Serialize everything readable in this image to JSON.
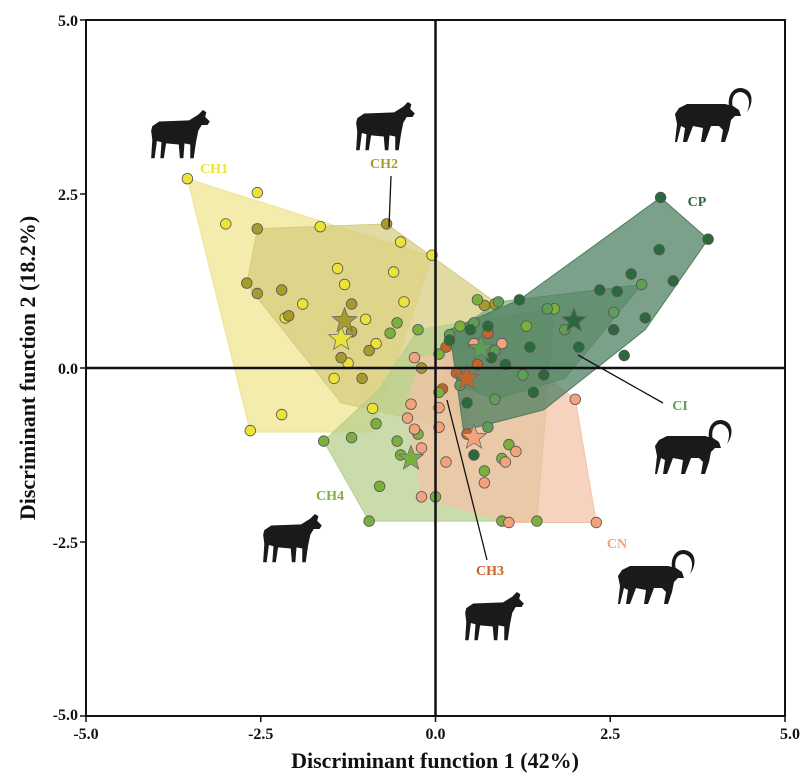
{
  "chart_data": {
    "type": "scatter",
    "title": "",
    "xlabel": "Discriminant function 1 (42%)",
    "ylabel": "Discriminant function 2 (18.2%)",
    "xlim": [
      -5,
      5
    ],
    "ylim": [
      -5,
      5
    ],
    "x_ticks": [
      "-5.0",
      "-2.5",
      "0.0",
      "2.5",
      "5.0"
    ],
    "y_ticks": [
      "-5.0",
      "-2.5",
      "0.0",
      "2.5",
      "5.0"
    ],
    "grid": false,
    "reference_lines": [
      0,
      0
    ],
    "groups": [
      {
        "name": "CH1",
        "color": "#ede238",
        "hull_color": "#eee48e",
        "centroid": [
          -1.35,
          0.42
        ],
        "hull": [
          [
            -3.55,
            2.72
          ],
          [
            -0.05,
            1.6
          ],
          [
            -0.9,
            -0.92
          ],
          [
            -2.65,
            -0.92
          ]
        ],
        "points": [
          [
            -3.55,
            2.72
          ],
          [
            -3.0,
            2.07
          ],
          [
            -2.55,
            2.52
          ],
          [
            -1.65,
            2.03
          ],
          [
            -0.5,
            1.81
          ],
          [
            -1.4,
            1.43
          ],
          [
            -1.3,
            1.2
          ],
          [
            -0.6,
            1.38
          ],
          [
            -1.9,
            0.92
          ],
          [
            -0.45,
            0.95
          ],
          [
            -2.15,
            0.72
          ],
          [
            -1.0,
            0.7
          ],
          [
            -1.25,
            0.07
          ],
          [
            -1.45,
            -0.15
          ],
          [
            -0.85,
            0.35
          ],
          [
            -0.05,
            1.62
          ],
          [
            -2.65,
            -0.9
          ],
          [
            -2.2,
            -0.67
          ],
          [
            -0.9,
            -0.58
          ]
        ]
      },
      {
        "name": "CH2",
        "color": "#a89b2b",
        "hull_color": "#d6cc7e",
        "centroid": [
          -1.3,
          0.68
        ],
        "hull": [
          [
            -2.55,
            2.0
          ],
          [
            -0.7,
            2.07
          ],
          [
            0.85,
            0.95
          ],
          [
            0.45,
            -0.9
          ],
          [
            -1.35,
            -0.5
          ],
          [
            -2.7,
            1.2
          ]
        ],
        "points": [
          [
            -2.55,
            2.0
          ],
          [
            -0.7,
            2.07
          ],
          [
            -2.7,
            1.22
          ],
          [
            -2.55,
            1.07
          ],
          [
            -2.2,
            1.12
          ],
          [
            -2.1,
            0.75
          ],
          [
            -1.2,
            0.92
          ],
          [
            -1.2,
            0.52
          ],
          [
            -0.95,
            0.25
          ],
          [
            -1.35,
            0.15
          ],
          [
            -1.05,
            -0.15
          ],
          [
            -0.2,
            0.0
          ],
          [
            0.85,
            0.92
          ],
          [
            0.7,
            0.9
          ]
        ]
      },
      {
        "name": "CH3",
        "color": "#c8642a",
        "hull_color": "#d99a6e",
        "centroid": [
          0.45,
          -0.15
        ],
        "hull": [
          [
            0.75,
            0.5
          ],
          [
            0.6,
            0.05
          ],
          [
            0.45,
            -0.95
          ],
          [
            0.1,
            -0.35
          ],
          [
            0.15,
            0.3
          ]
        ],
        "points": [
          [
            0.75,
            0.5
          ],
          [
            0.6,
            0.05
          ],
          [
            0.3,
            -0.07
          ],
          [
            0.1,
            -0.3
          ],
          [
            0.45,
            -0.95
          ],
          [
            0.15,
            0.3
          ]
        ]
      },
      {
        "name": "CH4",
        "color": "#7cb03c",
        "hull_color": "#b7ce8c",
        "centroid": [
          -0.35,
          -1.3
        ],
        "hull": [
          [
            -0.25,
            0.55
          ],
          [
            1.7,
            0.85
          ],
          [
            1.45,
            -2.2
          ],
          [
            -0.95,
            -2.2
          ],
          [
            -1.6,
            -1.05
          ],
          [
            -0.8,
            -0.3
          ]
        ],
        "points": [
          [
            1.7,
            0.85
          ],
          [
            1.3,
            0.6
          ],
          [
            0.6,
            0.98
          ],
          [
            0.35,
            0.6
          ],
          [
            -0.55,
            0.65
          ],
          [
            -0.65,
            0.5
          ],
          [
            -0.25,
            0.55
          ],
          [
            0.05,
            0.2
          ],
          [
            -1.6,
            -1.05
          ],
          [
            -1.2,
            -1.0
          ],
          [
            -0.85,
            -0.8
          ],
          [
            -0.55,
            -1.05
          ],
          [
            -0.25,
            -0.95
          ],
          [
            -0.5,
            -1.25
          ],
          [
            -0.95,
            -2.2
          ],
          [
            0.7,
            -1.48
          ],
          [
            0.95,
            -1.3
          ],
          [
            1.05,
            -1.1
          ],
          [
            0.95,
            -2.2
          ],
          [
            1.45,
            -2.2
          ],
          [
            0.0,
            -1.85
          ],
          [
            -0.8,
            -1.7
          ],
          [
            0.05,
            -0.35
          ]
        ]
      },
      {
        "name": "CN",
        "color": "#f2a37c",
        "hull_color": "#f4c2a6",
        "centroid": [
          0.55,
          -1.0
        ],
        "hull": [
          [
            0.95,
            0.35
          ],
          [
            2.0,
            -0.45
          ],
          [
            2.3,
            -2.22
          ],
          [
            1.05,
            -2.22
          ],
          [
            -0.2,
            -1.85
          ],
          [
            -0.4,
            -0.5
          ],
          [
            -0.2,
            0.15
          ]
        ],
        "points": [
          [
            0.95,
            0.35
          ],
          [
            1.0,
            -1.35
          ],
          [
            2.0,
            -0.45
          ],
          [
            2.3,
            -2.22
          ],
          [
            1.05,
            -2.22
          ],
          [
            1.15,
            -1.2
          ],
          [
            0.7,
            -1.65
          ],
          [
            0.15,
            -1.35
          ],
          [
            -0.2,
            -1.85
          ],
          [
            -0.2,
            -1.15
          ],
          [
            -0.3,
            -0.88
          ],
          [
            -0.4,
            -0.72
          ],
          [
            -0.35,
            -0.52
          ],
          [
            -0.3,
            0.15
          ],
          [
            0.05,
            -0.57
          ],
          [
            0.05,
            -0.85
          ],
          [
            0.55,
            0.35
          ]
        ]
      },
      {
        "name": "CI",
        "color": "#5e9e55",
        "hull_color": "#86ad80",
        "centroid": [
          0.65,
          0.28
        ],
        "hull": [
          [
            0.9,
            0.95
          ],
          [
            2.95,
            1.2
          ],
          [
            1.85,
            -0.15
          ],
          [
            0.85,
            -0.45
          ],
          [
            0.35,
            -0.25
          ],
          [
            0.2,
            0.48
          ]
        ],
        "points": [
          [
            0.9,
            0.95
          ],
          [
            1.6,
            0.85
          ],
          [
            2.95,
            1.2
          ],
          [
            2.55,
            0.8
          ],
          [
            1.85,
            0.55
          ],
          [
            0.85,
            0.25
          ],
          [
            1.25,
            -0.1
          ],
          [
            0.85,
            -0.45
          ],
          [
            0.35,
            -0.25
          ],
          [
            0.2,
            0.48
          ],
          [
            0.75,
            -0.85
          ],
          [
            0.55,
            0.65
          ]
        ]
      },
      {
        "name": "CP",
        "color": "#2a6a3a",
        "hull_color": "#4a7d5e",
        "centroid": [
          1.98,
          0.68
        ],
        "hull": [
          [
            3.22,
            2.45
          ],
          [
            3.9,
            1.85
          ],
          [
            3.0,
            0.55
          ],
          [
            1.55,
            -0.6
          ],
          [
            0.4,
            -0.9
          ],
          [
            0.2,
            0.55
          ],
          [
            1.2,
            0.98
          ]
        ],
        "points": [
          [
            3.22,
            2.45
          ],
          [
            3.9,
            1.85
          ],
          [
            3.2,
            1.7
          ],
          [
            3.4,
            1.25
          ],
          [
            2.8,
            1.35
          ],
          [
            2.6,
            1.1
          ],
          [
            2.35,
            1.12
          ],
          [
            3.0,
            0.72
          ],
          [
            2.55,
            0.55
          ],
          [
            2.7,
            0.18
          ],
          [
            2.05,
            0.3
          ],
          [
            1.2,
            0.98
          ],
          [
            1.55,
            -0.1
          ],
          [
            1.4,
            -0.35
          ],
          [
            1.35,
            0.3
          ],
          [
            0.75,
            0.6
          ],
          [
            0.5,
            0.55
          ],
          [
            0.2,
            0.4
          ],
          [
            0.45,
            -0.5
          ],
          [
            0.55,
            -1.25
          ],
          [
            1.0,
            0.05
          ],
          [
            0.8,
            0.15
          ]
        ]
      }
    ]
  },
  "animals": [
    {
      "kind": "goat",
      "near": "CH1"
    },
    {
      "kind": "goat",
      "near": "CH2"
    },
    {
      "kind": "goat",
      "near": "CH3"
    },
    {
      "kind": "goat",
      "near": "CH4"
    },
    {
      "kind": "ibex",
      "near": "CP"
    },
    {
      "kind": "ibex",
      "near": "CI"
    },
    {
      "kind": "ibex",
      "near": "CN"
    }
  ]
}
